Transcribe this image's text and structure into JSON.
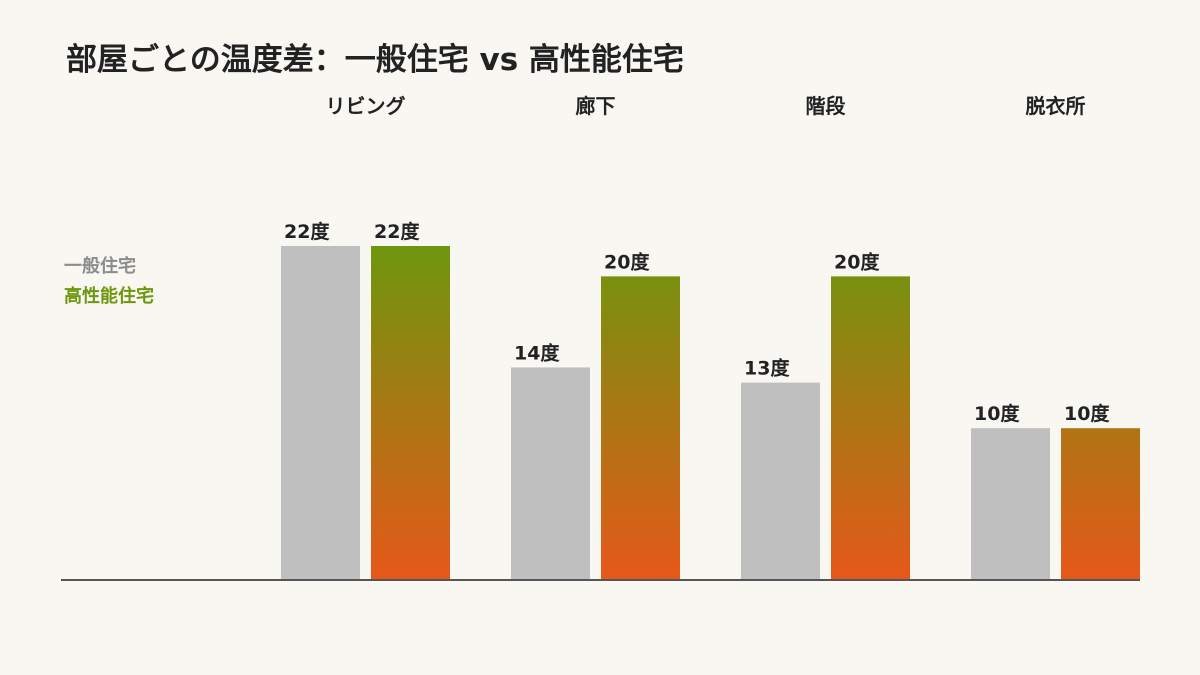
{
  "title": "部屋ごとの温度差：一般住宅 vs 高性能住宅",
  "colors": {
    "general": "#bfbfbf",
    "high_top": "#6e960e",
    "high_bottom": "#e65819",
    "axis": "#555555",
    "legend_general": "#8c8c8c",
    "legend_high": "#6e960e"
  },
  "chart_data": {
    "type": "bar",
    "categories": [
      "リビング",
      "廊下",
      "階段",
      "脱衣所"
    ],
    "unit_suffix": "度",
    "series": [
      {
        "name": "一般住宅",
        "values": [
          22,
          14,
          13,
          10
        ]
      },
      {
        "name": "高性能住宅",
        "values": [
          22,
          20,
          20,
          10
        ]
      }
    ],
    "ylim": [
      0,
      22
    ],
    "legend_position": "left",
    "grid": false
  }
}
